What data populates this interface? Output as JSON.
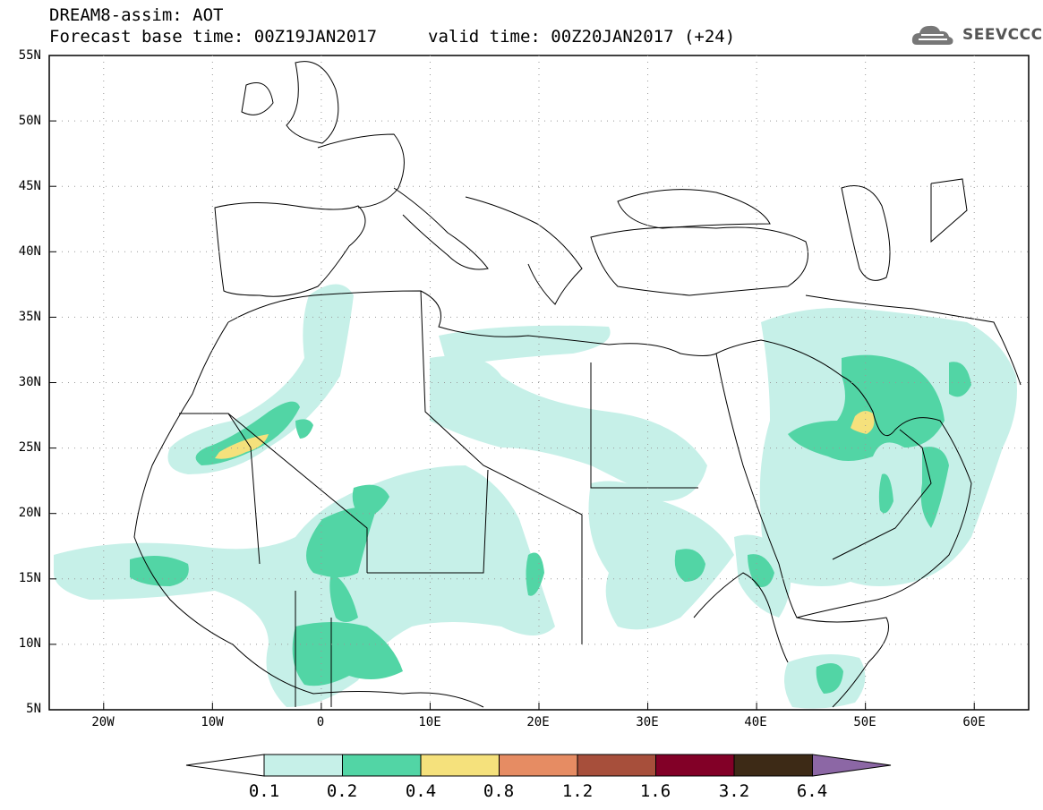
{
  "header": {
    "title": "DREAM8-assim: AOT",
    "base_time": "Forecast base time: 00Z19JAN2017",
    "valid_time": "valid time: 00Z20JAN2017 (+24)"
  },
  "logo": {
    "text": "SEEVCCC",
    "icon": "cloud-logo-icon"
  },
  "map": {
    "lat_labels": [
      "55N",
      "50N",
      "45N",
      "40N",
      "35N",
      "30N",
      "25N",
      "20N",
      "15N",
      "10N",
      "5N"
    ],
    "lon_labels": [
      "20W",
      "10W",
      "0",
      "10E",
      "20E",
      "30E",
      "40E",
      "50E",
      "60E"
    ],
    "lon_range": [
      -25,
      65
    ],
    "lat_range": [
      5,
      55
    ]
  },
  "colorbar": {
    "labels": [
      "0.1",
      "0.2",
      "0.4",
      "0.8",
      "1.2",
      "1.6",
      "3.2",
      "6.4"
    ],
    "colors": [
      "#ffffff",
      "#c6f0e8",
      "#52d5a5",
      "#f5e17c",
      "#e68c63",
      "#a74f3b",
      "#820027",
      "#3d2a16",
      "#8c67a5"
    ]
  }
}
